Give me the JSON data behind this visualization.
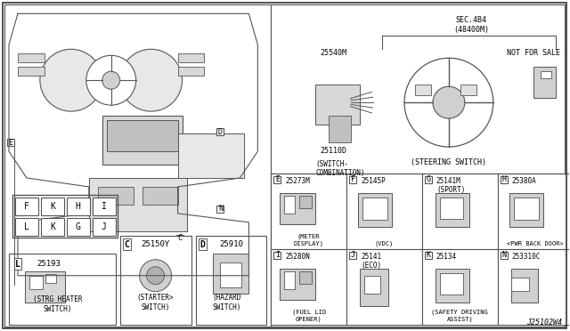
{
  "bg_color": "#f0f0f0",
  "border_color": "#333333",
  "title_code": "J25102W4",
  "sections": {
    "top_right_label": "SEC.4B4\n(48400M)",
    "not_for_sale": "NOT FOR SALE",
    "switch_combination_part": "25540M",
    "switch_combination_label": "(SWITCH-\nCOMBINATION)",
    "steering_part": "25110D",
    "steering_label": "(STEERING SWITCH)",
    "E_part": "25273M",
    "E_label": "(METER\nDISPLAY)",
    "F_part": "25145P",
    "F_label": "(VDC)",
    "G_part": "25141M\n(SPORT)",
    "G_label": "",
    "H_part": "25380A",
    "H_label": "<PWR BACK DOOR>",
    "I_part": "25280N",
    "I_label": "(FUEL LID\nOPENER)",
    "J_part": "25141\n(ECO)",
    "J_label": "",
    "K_part": "25134",
    "K_label": "(SAFETY DRIVING\nASSIST)",
    "N_part": "253310C",
    "L_part": "25193",
    "L_label": "(STRG HEATER\nSWITCH)",
    "C_part": "25150Y",
    "C_label": "(STARTER>\nSWITCH)",
    "D_part": "25910",
    "D_label": "(HAZARD\nSWITCH)"
  }
}
